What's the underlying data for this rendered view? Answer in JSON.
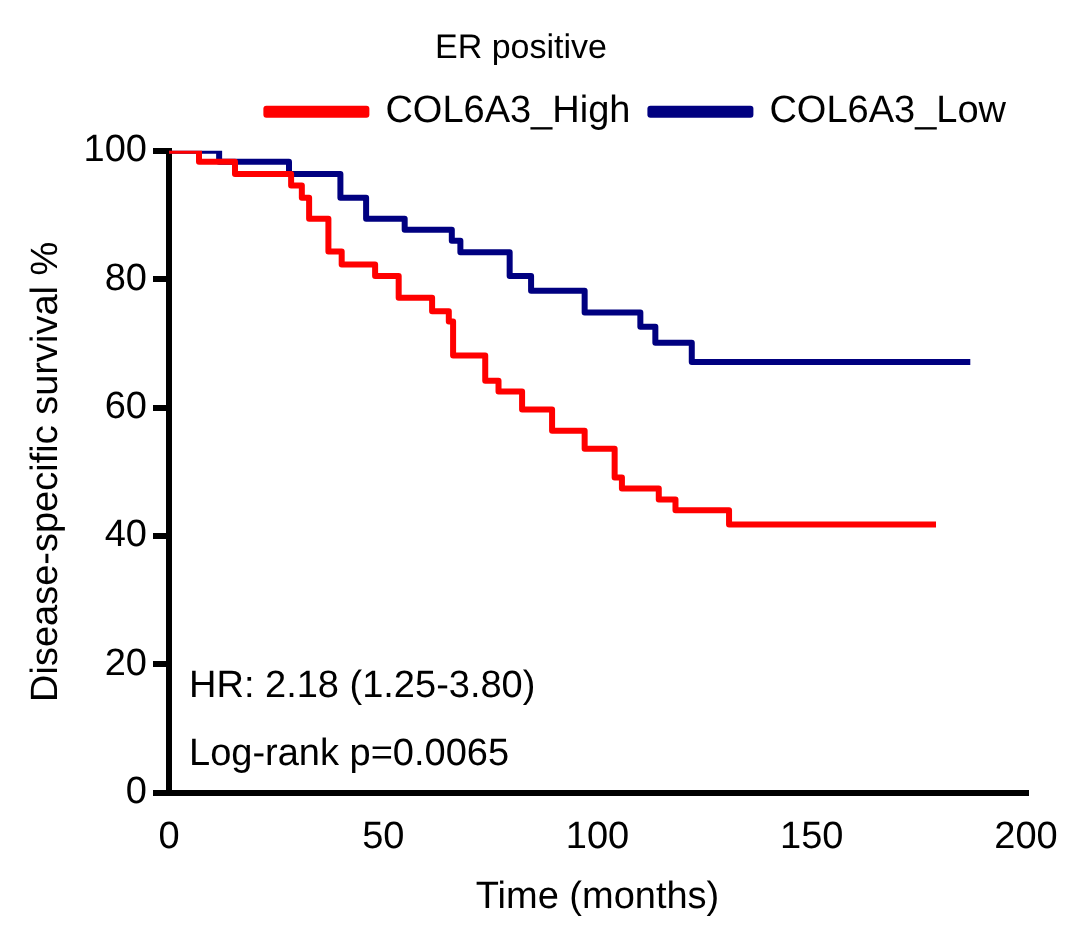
{
  "chart_data": {
    "type": "step",
    "title": "ER positive",
    "xlabel": "Time (months)",
    "ylabel": "Disease-specific survival %",
    "series": [
      {
        "name": "COL6A3_High",
        "color": "#ff0000",
        "x": [
          0,
          7,
          15.4,
          28.5,
          31,
          32.7,
          37.2,
          40.3,
          48.1,
          53.6,
          61.4,
          65.3,
          66.3,
          73.8,
          76.9,
          82.4,
          89.4,
          97,
          104,
          105.7,
          114.3,
          118.2,
          130.7,
          179
        ],
        "values": [
          100,
          98.3,
          96.4,
          94.6,
          92.7,
          89.4,
          84.3,
          82.3,
          80.5,
          77.1,
          75,
          73.4,
          68.1,
          64.2,
          62.5,
          59.7,
          56.4,
          53.6,
          49.1,
          47.4,
          45.7,
          44,
          41.8,
          41.8
        ]
      },
      {
        "name": "COL6A3_Low",
        "color": "#000080",
        "x": [
          0,
          11.7,
          28,
          40,
          46,
          55,
          66,
          68,
          79.5,
          84.5,
          92.5,
          97,
          110,
          113.5,
          122,
          187
        ],
        "values": [
          100,
          98.3,
          96.4,
          92.7,
          89.4,
          87.7,
          86,
          84.2,
          80.5,
          78.2,
          78.2,
          74.8,
          72.6,
          70.1,
          67.1,
          67.1
        ]
      }
    ],
    "xlim": [
      0,
      200
    ],
    "xticks": [
      0,
      50,
      100,
      150,
      200
    ],
    "ylim": [
      0,
      100
    ],
    "yticks": [
      0,
      20,
      40,
      60,
      80,
      100
    ],
    "grid": false,
    "legend": "top right",
    "marker": "none",
    "line_style": "solid",
    "annotations": [
      "HR: 2.18 (1.25-3.80)",
      "Log-rank p=0.0065"
    ]
  }
}
